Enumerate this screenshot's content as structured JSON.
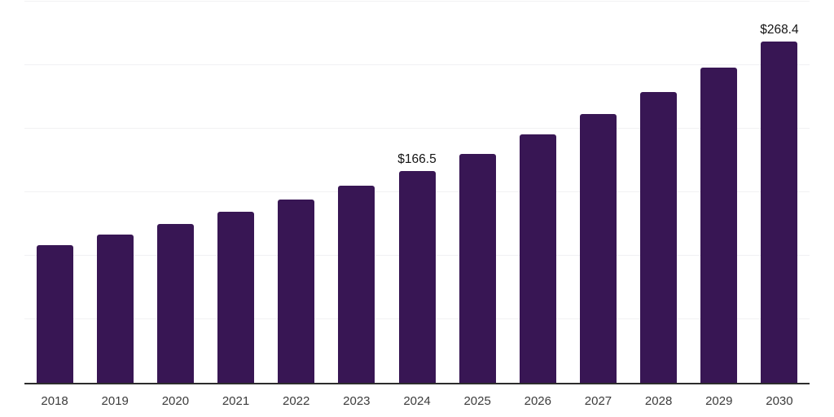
{
  "chart_data": {
    "type": "bar",
    "title": "",
    "xlabel": "",
    "ylabel": "",
    "categories": [
      "2018",
      "2019",
      "2020",
      "2021",
      "2022",
      "2023",
      "2024",
      "2025",
      "2026",
      "2027",
      "2028",
      "2029",
      "2030"
    ],
    "values": [
      108.3,
      116.9,
      125.0,
      134.6,
      144.2,
      155.0,
      166.5,
      180.3,
      195.3,
      211.5,
      229.1,
      248.1,
      268.4
    ],
    "data_labels": {
      "2024": "$166.5",
      "2030": "$268.4"
    },
    "ylim": [
      0,
      300
    ],
    "grid_step": 50,
    "grid": true,
    "legend": false,
    "y_tick_labels_visible": false,
    "colors": {
      "bar": "#381654",
      "gridline": "#f1f1f3",
      "axis": "#2d2d2d",
      "category_label": "#3c3c3c",
      "value_label": "#141414",
      "background": "#ffffff"
    }
  }
}
